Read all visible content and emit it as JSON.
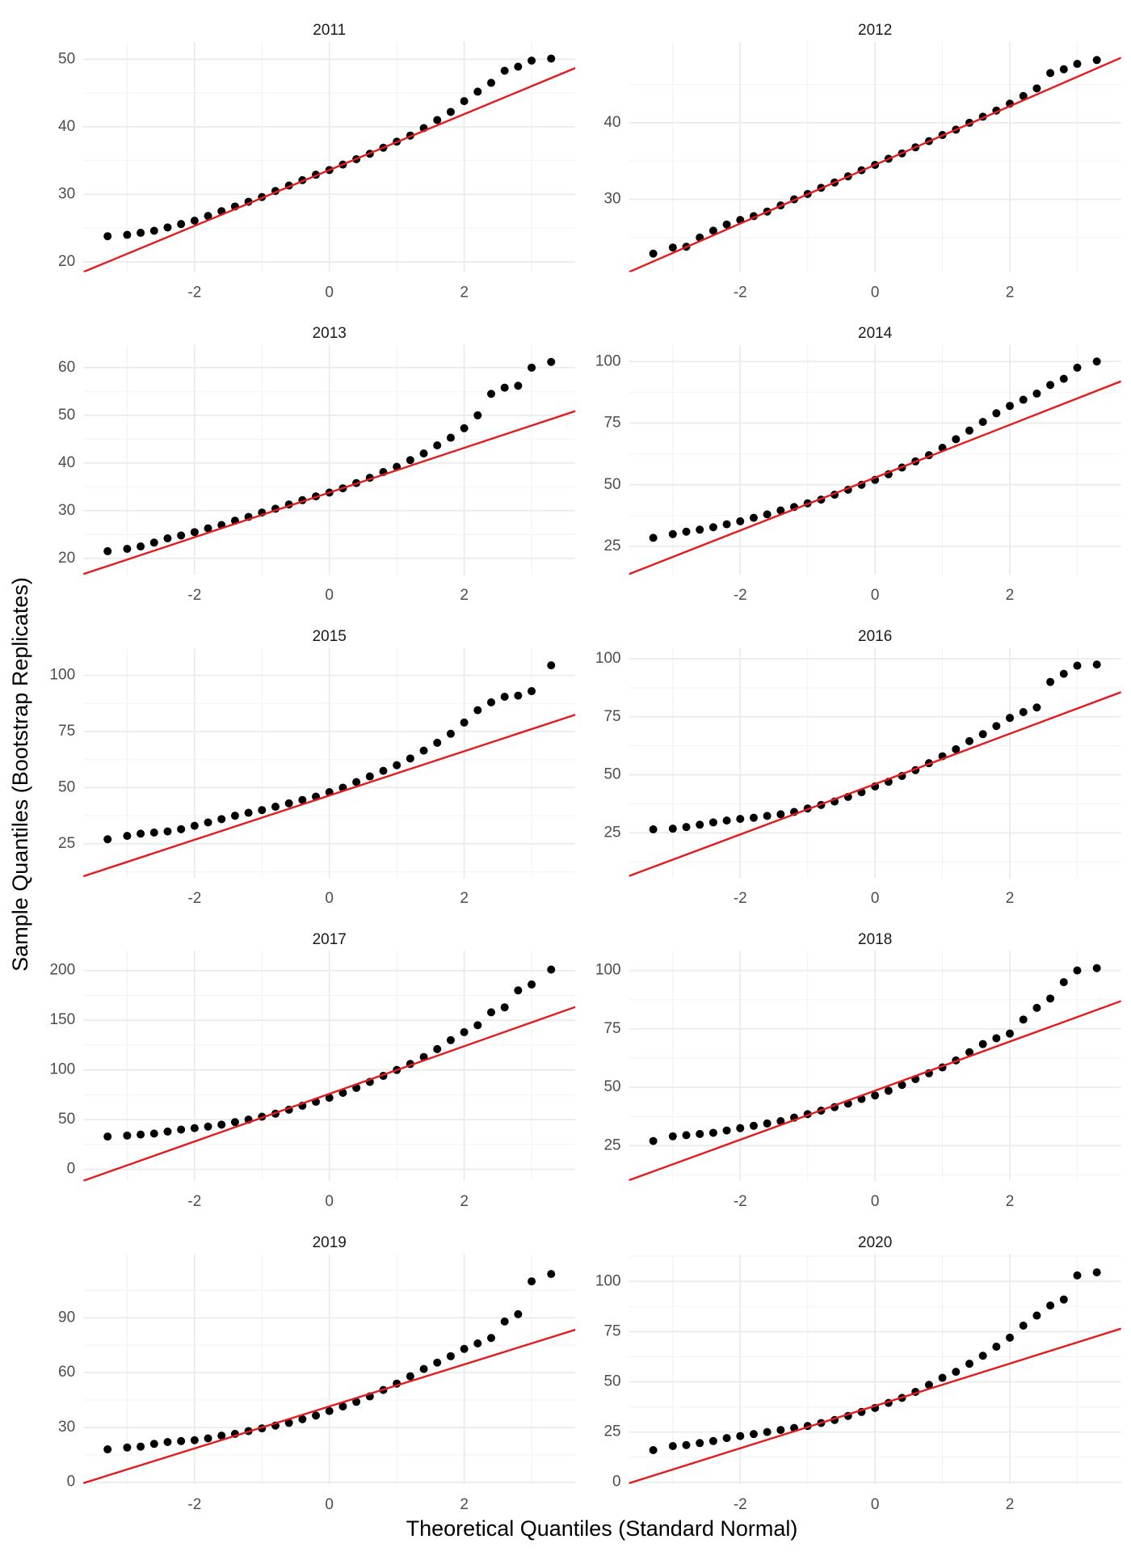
{
  "axis_labels": {
    "x": "Theoretical Quantiles (Standard Normal)",
    "y": "Sample Quantiles (Bootstrap Replicates)"
  },
  "chart_data": [
    {
      "type": "scatter",
      "title": "2011",
      "color": "#000000",
      "line_color": "#e41a1c",
      "grid": true,
      "minor_grid": true,
      "xlim": [
        -3.65,
        3.65
      ],
      "xticks": [
        -2,
        0,
        2
      ],
      "ylim": [
        18.5,
        52.6
      ],
      "yticks": [
        20,
        30,
        40,
        50
      ],
      "x": [
        -3.29,
        -3.0,
        -2.8,
        -2.6,
        -2.4,
        -2.2,
        -2.0,
        -1.8,
        -1.6,
        -1.4,
        -1.2,
        -1.0,
        -0.8,
        -0.6,
        -0.4,
        -0.2,
        0,
        0.2,
        0.4,
        0.6,
        0.8,
        1.0,
        1.2,
        1.4,
        1.6,
        1.8,
        2.0,
        2.2,
        2.4,
        2.6,
        2.8,
        3.0,
        3.29
      ],
      "values": [
        23.8,
        24.0,
        24.3,
        24.6,
        25.1,
        25.6,
        26.1,
        26.8,
        27.5,
        28.2,
        28.9,
        29.6,
        30.5,
        31.3,
        32.1,
        32.9,
        33.6,
        34.4,
        35.2,
        36.0,
        36.9,
        37.8,
        38.7,
        39.8,
        41.0,
        42.2,
        43.8,
        45.2,
        46.5,
        48.3,
        48.9,
        49.8,
        50.1
      ],
      "line_x": [
        -3.65,
        3.65
      ],
      "line_y": [
        18.5,
        48.7
      ]
    },
    {
      "type": "scatter",
      "title": "2012",
      "color": "#000000",
      "line_color": "#e41a1c",
      "grid": true,
      "minor_grid": true,
      "xlim": [
        -3.65,
        3.65
      ],
      "xticks": [
        -2,
        0,
        2
      ],
      "ylim": [
        20.5,
        50.6
      ],
      "yticks": [
        30,
        40
      ],
      "x": [
        -3.29,
        -3.0,
        -2.8,
        -2.6,
        -2.4,
        -2.2,
        -2.0,
        -1.8,
        -1.6,
        -1.4,
        -1.2,
        -1.0,
        -0.8,
        -0.6,
        -0.4,
        -0.2,
        0,
        0.2,
        0.4,
        0.6,
        0.8,
        1.0,
        1.2,
        1.4,
        1.6,
        1.8,
        2.0,
        2.2,
        2.4,
        2.6,
        2.8,
        3.0,
        3.29
      ],
      "values": [
        22.9,
        23.7,
        23.8,
        25.0,
        25.9,
        26.7,
        27.3,
        27.8,
        28.4,
        29.2,
        30.0,
        30.7,
        31.5,
        32.2,
        33.0,
        33.8,
        34.5,
        35.3,
        36.0,
        36.8,
        37.6,
        38.4,
        39.1,
        40.0,
        40.8,
        41.6,
        42.5,
        43.5,
        44.5,
        46.5,
        47.0,
        47.7,
        48.2
      ],
      "line_x": [
        -3.65,
        3.65
      ],
      "line_y": [
        20.5,
        48.5
      ]
    },
    {
      "type": "scatter",
      "title": "2013",
      "color": "#000000",
      "line_color": "#e41a1c",
      "grid": true,
      "minor_grid": true,
      "xlim": [
        -3.65,
        3.65
      ],
      "xticks": [
        -2,
        0,
        2
      ],
      "ylim": [
        16.5,
        64.8
      ],
      "yticks": [
        20,
        30,
        40,
        50,
        60
      ],
      "x": [
        -3.29,
        -3.0,
        -2.8,
        -2.6,
        -2.4,
        -2.2,
        -2.0,
        -1.8,
        -1.6,
        -1.4,
        -1.2,
        -1.0,
        -0.8,
        -0.6,
        -0.4,
        -0.2,
        0,
        0.2,
        0.4,
        0.6,
        0.8,
        1.0,
        1.2,
        1.4,
        1.6,
        1.8,
        2.0,
        2.2,
        2.4,
        2.6,
        2.8,
        3.0,
        3.29
      ],
      "values": [
        21.5,
        22.0,
        22.5,
        23.3,
        24.2,
        24.8,
        25.5,
        26.3,
        27.0,
        27.9,
        28.7,
        29.6,
        30.4,
        31.3,
        32.2,
        33.0,
        33.8,
        34.7,
        35.8,
        36.9,
        38.1,
        39.2,
        40.6,
        42.0,
        43.7,
        45.3,
        47.3,
        50.0,
        54.5,
        55.8,
        56.2,
        60.0,
        61.2
      ],
      "line_x": [
        -3.65,
        3.65
      ],
      "line_y": [
        16.7,
        50.9
      ]
    },
    {
      "type": "scatter",
      "title": "2014",
      "color": "#000000",
      "line_color": "#e41a1c",
      "grid": true,
      "minor_grid": true,
      "xlim": [
        -3.65,
        3.65
      ],
      "xticks": [
        -2,
        0,
        2
      ],
      "ylim": [
        13.4,
        106.8
      ],
      "yticks": [
        25,
        50,
        75,
        100
      ],
      "x": [
        -3.29,
        -3.0,
        -2.8,
        -2.6,
        -2.4,
        -2.2,
        -2.0,
        -1.8,
        -1.6,
        -1.4,
        -1.2,
        -1.0,
        -0.8,
        -0.6,
        -0.4,
        -0.2,
        0,
        0.2,
        0.4,
        0.6,
        0.8,
        1.0,
        1.2,
        1.4,
        1.6,
        1.8,
        2.0,
        2.2,
        2.4,
        2.6,
        2.8,
        3.0,
        3.29
      ],
      "values": [
        28.5,
        30.0,
        31.0,
        31.8,
        32.8,
        34.0,
        35.2,
        36.6,
        38.0,
        39.6,
        41.0,
        42.5,
        44.0,
        46.0,
        48.0,
        50.0,
        52.0,
        54.3,
        57.0,
        59.5,
        62.0,
        65.0,
        68.5,
        72.0,
        75.5,
        79.0,
        82.0,
        84.5,
        87.0,
        90.5,
        93.0,
        97.5,
        100.0
      ],
      "line_x": [
        -3.65,
        3.65
      ],
      "line_y": [
        13.8,
        92.0
      ]
    },
    {
      "type": "scatter",
      "title": "2015",
      "color": "#000000",
      "line_color": "#e41a1c",
      "grid": true,
      "minor_grid": true,
      "xlim": [
        -3.65,
        3.65
      ],
      "xticks": [
        -2,
        0,
        2
      ],
      "ylim": [
        9.7,
        112.3
      ],
      "yticks": [
        25,
        50,
        75,
        100
      ],
      "x": [
        -3.29,
        -3.0,
        -2.8,
        -2.6,
        -2.4,
        -2.2,
        -2.0,
        -1.8,
        -1.6,
        -1.4,
        -1.2,
        -1.0,
        -0.8,
        -0.6,
        -0.4,
        -0.2,
        0,
        0.2,
        0.4,
        0.6,
        0.8,
        1.0,
        1.2,
        1.4,
        1.6,
        1.8,
        2.0,
        2.2,
        2.4,
        2.6,
        2.8,
        3.0,
        3.29
      ],
      "values": [
        27.0,
        28.5,
        29.5,
        30.0,
        30.5,
        31.5,
        33.0,
        34.5,
        36.0,
        37.5,
        38.8,
        40.0,
        41.5,
        43.0,
        44.5,
        46.0,
        48.0,
        50.0,
        52.5,
        55.0,
        57.5,
        60.0,
        63.0,
        66.5,
        70.0,
        74.0,
        79.0,
        84.5,
        88.0,
        90.5,
        91.0,
        93.0,
        104.5
      ],
      "line_x": [
        -3.65,
        3.65
      ],
      "line_y": [
        10.5,
        82.5
      ]
    },
    {
      "type": "scatter",
      "title": "2016",
      "color": "#000000",
      "line_color": "#e41a1c",
      "grid": true,
      "minor_grid": true,
      "xlim": [
        -3.65,
        3.65
      ],
      "xticks": [
        -2,
        0,
        2
      ],
      "ylim": [
        5.5,
        104.7
      ],
      "yticks": [
        25,
        50,
        75,
        100
      ],
      "x": [
        -3.29,
        -3.0,
        -2.8,
        -2.6,
        -2.4,
        -2.2,
        -2.0,
        -1.8,
        -1.6,
        -1.4,
        -1.2,
        -1.0,
        -0.8,
        -0.6,
        -0.4,
        -0.2,
        0,
        0.2,
        0.4,
        0.6,
        0.8,
        1.0,
        1.2,
        1.4,
        1.6,
        1.8,
        2.0,
        2.2,
        2.4,
        2.6,
        2.8,
        3.0,
        3.29
      ],
      "values": [
        26.5,
        26.8,
        27.5,
        28.5,
        29.5,
        30.3,
        31.0,
        31.5,
        32.3,
        33.0,
        34.0,
        35.5,
        37.0,
        38.5,
        40.5,
        42.5,
        45.0,
        47.0,
        49.5,
        52.0,
        55.0,
        58.0,
        61.0,
        64.5,
        67.5,
        71.0,
        74.5,
        77.0,
        79.0,
        90.0,
        93.5,
        97.0,
        97.5
      ],
      "line_x": [
        -3.65,
        3.65
      ],
      "line_y": [
        6.4,
        85.6
      ]
    },
    {
      "type": "scatter",
      "title": "2017",
      "color": "#000000",
      "line_color": "#e41a1c",
      "grid": true,
      "minor_grid": true,
      "xlim": [
        -3.65,
        3.65
      ],
      "xticks": [
        -2,
        0,
        2
      ],
      "ylim": [
        -11.9,
        219.8
      ],
      "yticks": [
        0,
        50,
        100,
        150,
        200
      ],
      "x": [
        -3.29,
        -3.0,
        -2.8,
        -2.6,
        -2.4,
        -2.2,
        -2.0,
        -1.8,
        -1.6,
        -1.4,
        -1.2,
        -1.0,
        -0.8,
        -0.6,
        -0.4,
        -0.2,
        0,
        0.2,
        0.4,
        0.6,
        0.8,
        1.0,
        1.2,
        1.4,
        1.6,
        1.8,
        2.0,
        2.2,
        2.4,
        2.6,
        2.8,
        3.0,
        3.29
      ],
      "values": [
        33,
        34,
        35,
        36,
        38,
        40,
        41.5,
        43,
        45,
        47.5,
        50,
        53,
        56,
        60,
        64,
        68,
        72,
        77,
        82,
        88,
        94,
        100,
        106,
        113,
        121,
        130,
        138,
        145,
        158,
        163,
        180,
        186,
        201
      ],
      "line_x": [
        -3.65,
        3.65
      ],
      "line_y": [
        -11.5,
        163.4
      ]
    },
    {
      "type": "scatter",
      "title": "2018",
      "color": "#000000",
      "line_color": "#e41a1c",
      "grid": true,
      "minor_grid": true,
      "xlim": [
        -3.65,
        3.65
      ],
      "xticks": [
        -2,
        0,
        2
      ],
      "ylim": [
        9.8,
        108.4
      ],
      "yticks": [
        25,
        50,
        75,
        100
      ],
      "x": [
        -3.29,
        -3.0,
        -2.8,
        -2.6,
        -2.4,
        -2.2,
        -2.0,
        -1.8,
        -1.6,
        -1.4,
        -1.2,
        -1.0,
        -0.8,
        -0.6,
        -0.4,
        -0.2,
        0,
        0.2,
        0.4,
        0.6,
        0.8,
        1.0,
        1.2,
        1.4,
        1.6,
        1.8,
        2.0,
        2.2,
        2.4,
        2.6,
        2.8,
        3.0,
        3.29
      ],
      "values": [
        27,
        29,
        29.5,
        30,
        30.5,
        31.5,
        32.5,
        33.5,
        34.5,
        35.5,
        37,
        38.5,
        40,
        41.5,
        43,
        45,
        46.5,
        48.5,
        51,
        53.5,
        56,
        58.5,
        61.5,
        65,
        68.5,
        71,
        73,
        79,
        84,
        88,
        95,
        100,
        101
      ],
      "line_x": [
        -3.65,
        3.65
      ],
      "line_y": [
        10.2,
        86.9
      ]
    },
    {
      "type": "scatter",
      "title": "2019",
      "color": "#000000",
      "line_color": "#e41a1c",
      "grid": true,
      "minor_grid": true,
      "xlim": [
        -3.65,
        3.65
      ],
      "xticks": [
        -2,
        0,
        2
      ],
      "ylim": [
        -1.1,
        125
      ],
      "yticks": [
        0,
        30,
        60,
        90
      ],
      "x": [
        -3.29,
        -3.0,
        -2.8,
        -2.6,
        -2.4,
        -2.2,
        -2.0,
        -1.8,
        -1.6,
        -1.4,
        -1.2,
        -1.0,
        -0.8,
        -0.6,
        -0.4,
        -0.2,
        0,
        0.2,
        0.4,
        0.6,
        0.8,
        1.0,
        1.2,
        1.4,
        1.6,
        1.8,
        2.0,
        2.2,
        2.4,
        2.6,
        2.8,
        3.0,
        3.29
      ],
      "values": [
        18,
        19,
        19.5,
        21,
        22,
        22.5,
        23,
        24,
        25.5,
        26.5,
        28,
        29.5,
        31,
        32.5,
        34.5,
        36.5,
        39,
        41.5,
        44,
        47,
        50.5,
        54,
        58,
        62,
        65.5,
        69,
        73,
        76,
        79,
        88,
        92,
        110,
        114
      ],
      "line_x": [
        -3.65,
        3.65
      ],
      "line_y": [
        -0.5,
        83.5
      ]
    },
    {
      "type": "scatter",
      "title": "2020",
      "color": "#000000",
      "line_color": "#e41a1c",
      "grid": true,
      "minor_grid": true,
      "xlim": [
        -3.65,
        3.65
      ],
      "xticks": [
        -2,
        0,
        2
      ],
      "ylim": [
        -1,
        113.7
      ],
      "yticks": [
        0,
        25,
        50,
        75,
        100
      ],
      "x": [
        -3.29,
        -3.0,
        -2.8,
        -2.6,
        -2.4,
        -2.2,
        -2.0,
        -1.8,
        -1.6,
        -1.4,
        -1.2,
        -1.0,
        -0.8,
        -0.6,
        -0.4,
        -0.2,
        0,
        0.2,
        0.4,
        0.6,
        0.8,
        1.0,
        1.2,
        1.4,
        1.6,
        1.8,
        2.0,
        2.2,
        2.4,
        2.6,
        2.8,
        3.0,
        3.29
      ],
      "values": [
        16,
        18,
        18.5,
        19.5,
        20.5,
        22,
        23,
        24,
        25,
        26,
        27,
        28,
        29.5,
        31,
        33,
        35,
        37,
        39.5,
        42,
        45,
        48.5,
        52,
        55,
        59,
        63,
        67.5,
        72,
        78,
        83,
        88,
        91,
        103,
        104.5
      ],
      "line_x": [
        -3.65,
        3.65
      ],
      "line_y": [
        -0.5,
        76.5
      ]
    }
  ]
}
